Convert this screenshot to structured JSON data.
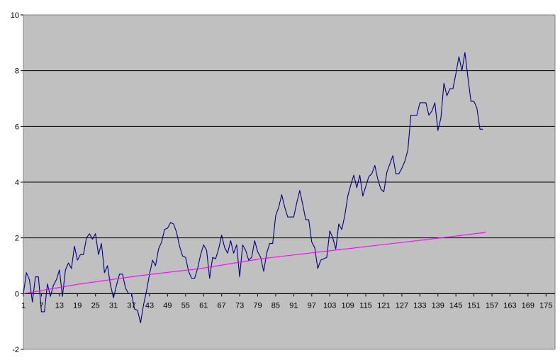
{
  "chart_data": {
    "type": "line",
    "title": "",
    "xlabel": "",
    "ylabel": "",
    "ylim": [
      -2,
      10
    ],
    "xlim": [
      1,
      178
    ],
    "y_ticks": [
      -2,
      0,
      2,
      4,
      6,
      8,
      10
    ],
    "x_ticks": [
      1,
      7,
      13,
      19,
      25,
      31,
      37,
      43,
      49,
      55,
      61,
      67,
      73,
      79,
      85,
      91,
      97,
      103,
      109,
      115,
      121,
      127,
      133,
      139,
      145,
      151,
      157,
      163,
      169,
      175
    ],
    "grid": "horizontal",
    "legend": "none",
    "plot_background": "#c0c0c0",
    "series": [
      {
        "color": "#000080",
        "points": [
          [
            1,
            0.0
          ],
          [
            2,
            0.75
          ],
          [
            3,
            0.5
          ],
          [
            4,
            -0.3
          ],
          [
            5,
            0.6
          ],
          [
            6,
            0.6
          ],
          [
            7,
            -0.65
          ],
          [
            8,
            -0.65
          ],
          [
            9,
            0.35
          ],
          [
            10,
            -0.1
          ],
          [
            11,
            0.3
          ],
          [
            12,
            0.5
          ],
          [
            13,
            0.85
          ],
          [
            14,
            -0.1
          ],
          [
            15,
            0.85
          ],
          [
            16,
            1.1
          ],
          [
            17,
            0.9
          ],
          [
            18,
            1.7
          ],
          [
            19,
            1.2
          ],
          [
            20,
            1.4
          ],
          [
            21,
            1.4
          ],
          [
            22,
            2.0
          ],
          [
            23,
            2.15
          ],
          [
            24,
            1.95
          ],
          [
            25,
            2.15
          ],
          [
            26,
            1.4
          ],
          [
            27,
            1.8
          ],
          [
            28,
            0.75
          ],
          [
            29,
            1.0
          ],
          [
            30,
            0.3
          ],
          [
            31,
            -0.15
          ],
          [
            32,
            0.3
          ],
          [
            33,
            0.7
          ],
          [
            34,
            0.7
          ],
          [
            35,
            0.2
          ],
          [
            36,
            0.0
          ],
          [
            37,
            0.0
          ],
          [
            38,
            -0.55
          ],
          [
            39,
            -0.6
          ],
          [
            40,
            -1.05
          ],
          [
            41,
            -0.4
          ],
          [
            42,
            0.1
          ],
          [
            43,
            0.7
          ],
          [
            44,
            1.2
          ],
          [
            45,
            1.0
          ],
          [
            46,
            1.6
          ],
          [
            47,
            1.85
          ],
          [
            48,
            2.3
          ],
          [
            49,
            2.35
          ],
          [
            50,
            2.55
          ],
          [
            51,
            2.5
          ],
          [
            52,
            2.2
          ],
          [
            53,
            1.7
          ],
          [
            54,
            1.35
          ],
          [
            55,
            1.3
          ],
          [
            56,
            0.8
          ],
          [
            57,
            0.55
          ],
          [
            58,
            0.55
          ],
          [
            59,
            0.9
          ],
          [
            60,
            1.4
          ],
          [
            61,
            1.75
          ],
          [
            62,
            1.55
          ],
          [
            63,
            0.55
          ],
          [
            64,
            1.3
          ],
          [
            65,
            1.25
          ],
          [
            66,
            1.6
          ],
          [
            67,
            2.1
          ],
          [
            68,
            1.65
          ],
          [
            69,
            1.45
          ],
          [
            70,
            1.9
          ],
          [
            71,
            1.45
          ],
          [
            72,
            1.75
          ],
          [
            73,
            0.6
          ],
          [
            74,
            1.75
          ],
          [
            75,
            1.55
          ],
          [
            76,
            1.2
          ],
          [
            77,
            1.3
          ],
          [
            78,
            1.9
          ],
          [
            79,
            1.5
          ],
          [
            80,
            1.3
          ],
          [
            81,
            0.8
          ],
          [
            82,
            1.45
          ],
          [
            83,
            1.8
          ],
          [
            84,
            1.8
          ],
          [
            85,
            2.8
          ],
          [
            86,
            3.1
          ],
          [
            87,
            3.55
          ],
          [
            88,
            3.1
          ],
          [
            89,
            2.75
          ],
          [
            90,
            2.75
          ],
          [
            91,
            2.75
          ],
          [
            92,
            3.25
          ],
          [
            93,
            3.7
          ],
          [
            94,
            3.2
          ],
          [
            95,
            2.65
          ],
          [
            96,
            2.65
          ],
          [
            97,
            1.85
          ],
          [
            98,
            1.65
          ],
          [
            99,
            0.9
          ],
          [
            100,
            1.2
          ],
          [
            101,
            1.25
          ],
          [
            102,
            1.3
          ],
          [
            103,
            2.25
          ],
          [
            104,
            2.0
          ],
          [
            105,
            1.6
          ],
          [
            106,
            2.5
          ],
          [
            107,
            2.3
          ],
          [
            108,
            2.8
          ],
          [
            109,
            3.5
          ],
          [
            110,
            3.9
          ],
          [
            111,
            4.25
          ],
          [
            112,
            3.8
          ],
          [
            113,
            4.25
          ],
          [
            114,
            3.5
          ],
          [
            115,
            3.85
          ],
          [
            116,
            4.2
          ],
          [
            117,
            4.3
          ],
          [
            118,
            4.6
          ],
          [
            119,
            4.1
          ],
          [
            120,
            3.75
          ],
          [
            121,
            3.65
          ],
          [
            122,
            4.35
          ],
          [
            123,
            4.65
          ],
          [
            124,
            4.95
          ],
          [
            125,
            4.3
          ],
          [
            126,
            4.3
          ],
          [
            127,
            4.5
          ],
          [
            128,
            4.75
          ],
          [
            129,
            5.15
          ],
          [
            130,
            6.4
          ],
          [
            131,
            6.4
          ],
          [
            132,
            6.4
          ],
          [
            133,
            6.85
          ],
          [
            134,
            6.85
          ],
          [
            135,
            6.85
          ],
          [
            136,
            6.4
          ],
          [
            137,
            6.55
          ],
          [
            138,
            6.85
          ],
          [
            139,
            5.85
          ],
          [
            140,
            6.3
          ],
          [
            141,
            7.55
          ],
          [
            142,
            7.1
          ],
          [
            143,
            7.35
          ],
          [
            144,
            7.35
          ],
          [
            145,
            7.9
          ],
          [
            146,
            8.5
          ],
          [
            147,
            8.0
          ],
          [
            148,
            8.65
          ],
          [
            149,
            7.75
          ],
          [
            150,
            6.9
          ],
          [
            151,
            6.9
          ],
          [
            152,
            6.65
          ],
          [
            153,
            5.9
          ],
          [
            154,
            5.9
          ]
        ]
      },
      {
        "color": "#ff00ff",
        "points": [
          [
            1,
            0.0
          ],
          [
            20,
            0.35
          ],
          [
            40,
            0.65
          ],
          [
            60,
            0.9
          ],
          [
            80,
            1.25
          ],
          [
            100,
            1.5
          ],
          [
            120,
            1.75
          ],
          [
            140,
            2.0
          ],
          [
            155,
            2.2
          ]
        ]
      }
    ]
  }
}
